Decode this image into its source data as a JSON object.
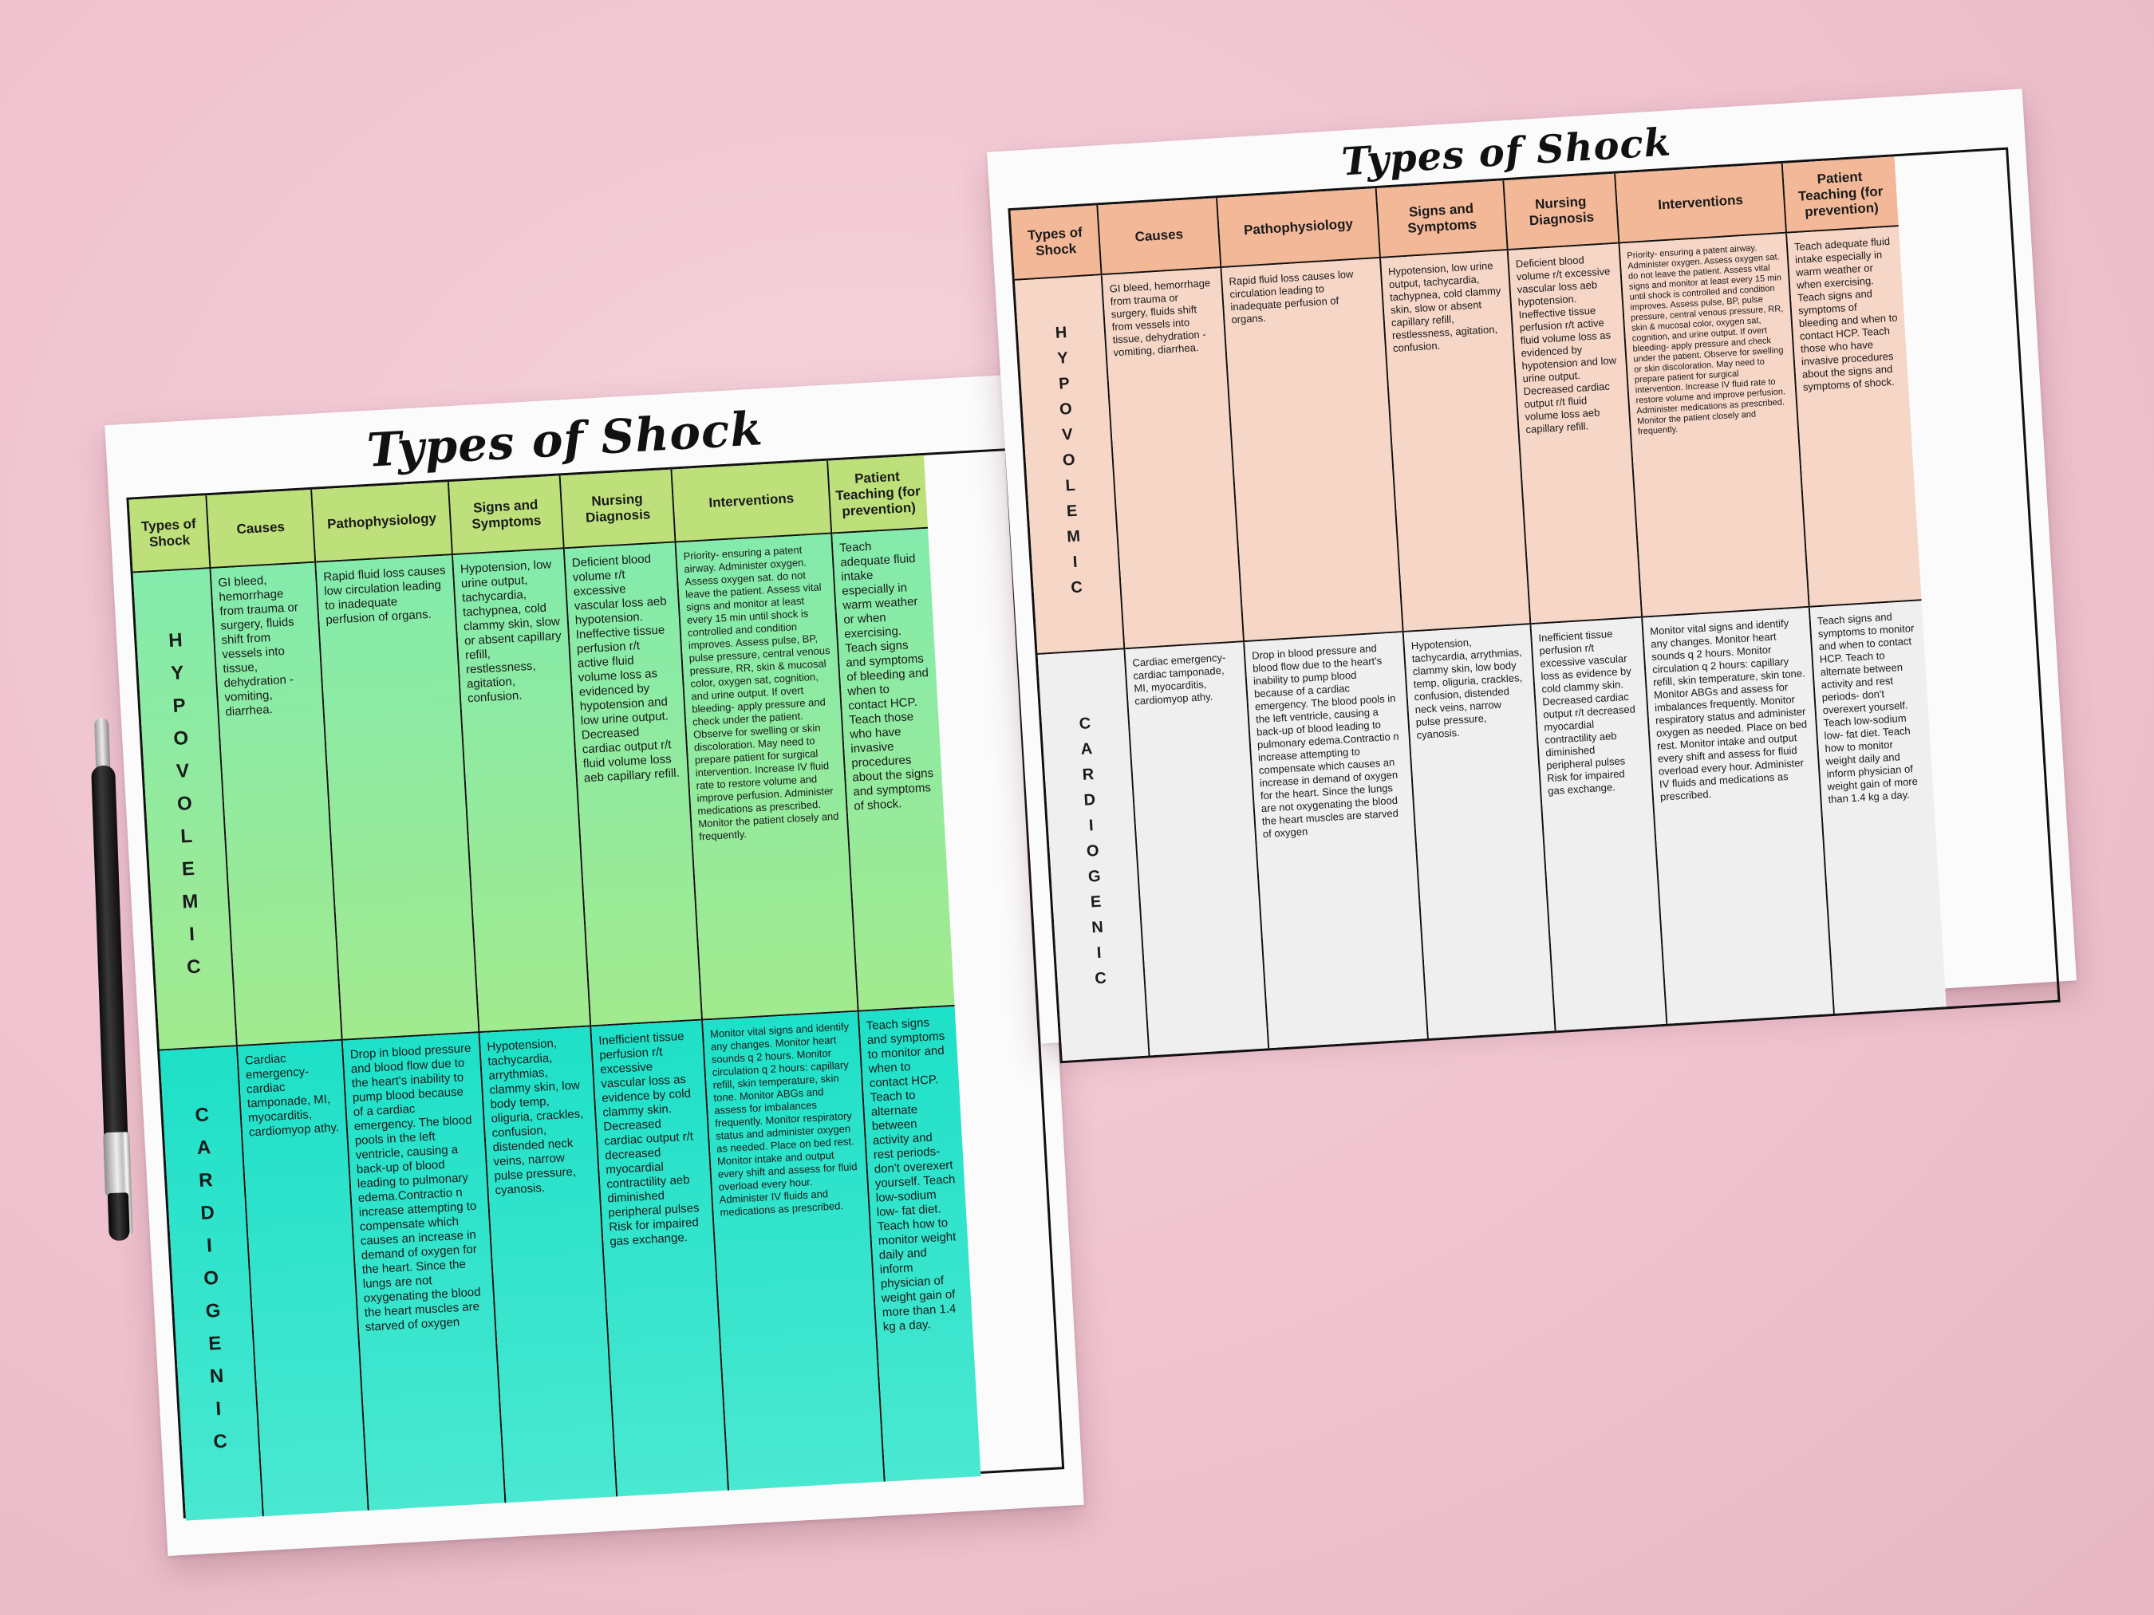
{
  "title": "Types of Shock",
  "headers": [
    "Types of Shock",
    "Causes",
    "Pathophysiology",
    "Signs and Symptoms",
    "Nursing Diagnosis",
    "Interventions",
    "Patient Teaching (for prevention)"
  ],
  "rows": {
    "hypovolemic": {
      "type": "HYPOVOLEMIC",
      "causes": "GI bleed, hemorrhage from trauma or surgery, fluids shift from vessels into tissue, dehydration - vomiting, diarrhea.",
      "pathophysiology": "Rapid fluid loss causes low circulation leading to inadequate perfusion of organs.",
      "signs": "Hypotension, low urine output, tachycardia, tachypnea, cold clammy skin, slow or absent capillary refill, restlessness, agitation, confusion.",
      "diagnosis": "Deficient blood volume r/t excessive vascular loss aeb hypotension. Ineffective tissue perfusion r/t active fluid volume loss as evidenced by hypotension and low urine output. Decreased cardiac output r/t fluid volume loss aeb capillary refill.",
      "interventions": "Priority- ensuring a patent airway. Administer oxygen. Assess oxygen sat. do not leave the patient. Assess vital signs and monitor at least every 15 min until shock is controlled and condition improves. Assess pulse, BP, pulse pressure, central venous pressure, RR, skin & mucosal color, oxygen sat, cognition, and urine output. If overt bleeding- apply pressure and check under the patient. Observe for swelling or skin discoloration. May need to prepare patient for surgical intervention. Increase IV fluid rate to restore volume and improve perfusion. Administer medications as prescribed. Monitor the patient closely and frequently.",
      "teaching": "Teach adequate fluid intake especially in warm weather or when exercising. Teach signs and symptoms of bleeding and when to contact HCP. Teach those who have invasive procedures about the signs and symptoms of shock."
    },
    "cardiogenic": {
      "type": "CARDIOGENIC",
      "causes": "Cardiac emergency- cardiac tamponade, MI, myocarditis, cardiomyop athy.",
      "pathophysiology": "Drop in blood pressure and blood flow due to the heart's inability to pump blood because of a cardiac emergency. The blood pools in the left ventricle, causing a back-up of blood leading to pulmonary edema.Contractio n increase attempting to compensate which causes an increase in demand of oxygen for the heart. Since the lungs are not oxygenating the blood the heart muscles are starved of oxygen",
      "signs": "Hypotension, tachycardia, arrythmias, clammy skin, low body temp, oliguria, crackles, confusion, distended neck veins, narrow pulse pressure, cyanosis.",
      "diagnosis": "Inefficient tissue perfusion r/t excessive vascular loss as evidence by cold clammy skin. Decreased cardiac output r/t decreased myocardial contractility aeb diminished peripheral pulses Risk for impaired gas exchange.",
      "interventions": "Monitor vital signs and identify any changes. Monitor heart sounds q 2 hours. Monitor circulation q 2 hours: capillary refill, skin temperature, skin tone. Monitor ABGs and assess for imbalances frequently. Monitor respiratory status and administer oxygen as needed. Place on bed rest. Monitor intake and output every shift and assess for fluid overload every hour. Administer IV fluids and medications as prescribed.",
      "teaching": "Teach signs and symptoms to monitor and when to contact HCP. Teach to alternate between activity and rest periods- don't overexert yourself. Teach low-sodium low- fat diet. Teach how to monitor weight daily and inform physician of weight gain of more than 1.4 kg a day."
    }
  }
}
